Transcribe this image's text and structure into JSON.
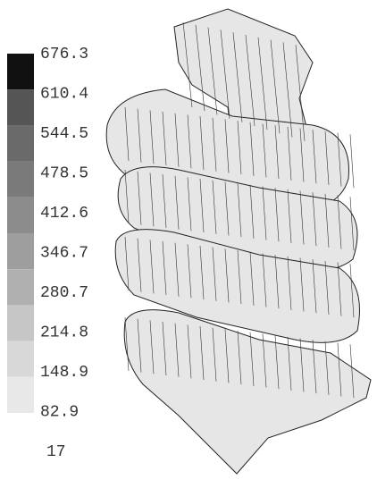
{
  "legend": {
    "labels": [
      "676.3",
      "610.4",
      "544.5",
      "478.5",
      "412.6",
      "346.7",
      "280.7",
      "214.8",
      "148.9",
      "82.9",
      "17"
    ]
  }
}
